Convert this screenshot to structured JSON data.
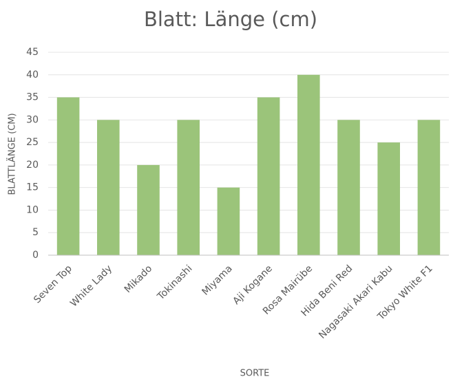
{
  "chart_data": {
    "type": "bar",
    "title": "Blatt: Länge (cm)",
    "x_label": "SORTE",
    "y_label": "BLATTLÄNGE (CM)",
    "categories": [
      "Seven Top",
      "White Lady",
      "Mikado",
      "Tokinashi",
      "Miyama",
      "Aji Kogane",
      "Rosa Mairübe",
      "Hida Beni Red",
      "Nagasaki Akari Kabu",
      "Tokyo White F1"
    ],
    "values": [
      35,
      30,
      20,
      30,
      15,
      35,
      40,
      30,
      25,
      30
    ],
    "color": "#9bc47a",
    "ylim": [
      0,
      45
    ],
    "yticks": [
      0,
      5,
      10,
      15,
      20,
      25,
      30,
      35,
      40,
      45
    ],
    "grid": true
  }
}
